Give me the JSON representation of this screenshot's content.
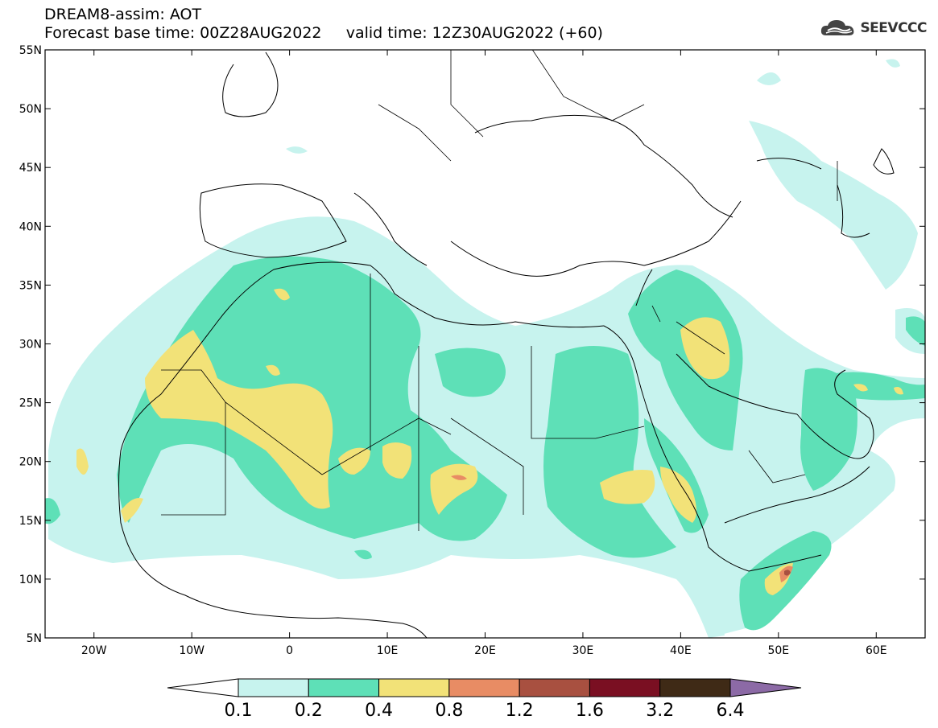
{
  "title": {
    "line1": "DREAM8-assim: AOT",
    "base_label": "Forecast base time:",
    "base_value": "00Z28AUG2022",
    "valid_label": "valid time:",
    "valid_value": "12Z30AUG2022 (+60)"
  },
  "logo": {
    "text": "SEEVCCC",
    "icon": "cloud-icon"
  },
  "axes": {
    "lon_ticks": [
      "20W",
      "10W",
      "0",
      "10E",
      "20E",
      "30E",
      "40E",
      "50E",
      "60E"
    ],
    "lat_ticks": [
      "55N",
      "50N",
      "45N",
      "40N",
      "35N",
      "30N",
      "25N",
      "20N",
      "15N",
      "10N",
      "5N"
    ]
  },
  "colorbar": {
    "labels": [
      "0.1",
      "0.2",
      "0.4",
      "0.8",
      "1.2",
      "1.6",
      "3.2",
      "6.4"
    ],
    "colors": [
      "#ffffff",
      "#c7f3ee",
      "#5ee0b7",
      "#f2e278",
      "#e88c64",
      "#a85040",
      "#7a0f22",
      "#3f2a16",
      "#8c6aa6"
    ]
  },
  "palette": {
    "low": "#c7f3ee",
    "mid": "#5ee0b7",
    "high": "#f2e278",
    "orange": "#e88c64",
    "brown": "#a85040"
  }
}
